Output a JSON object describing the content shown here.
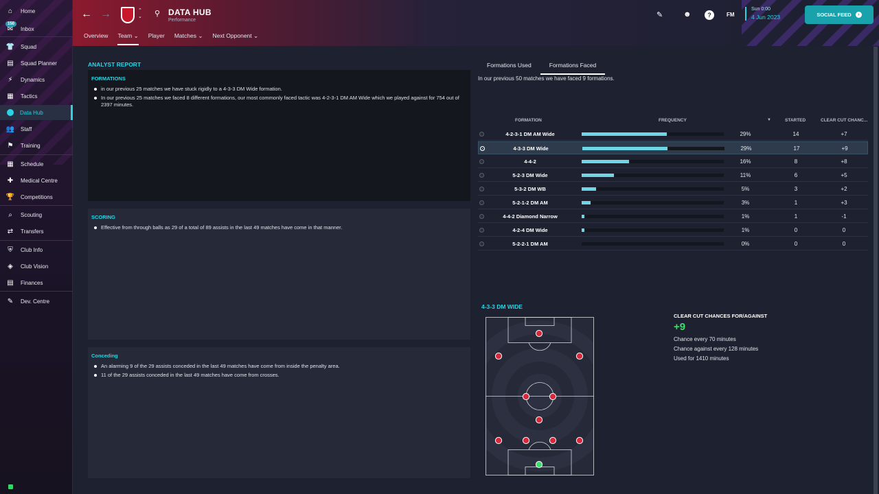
{
  "sidebar": {
    "inbox_badge": "150",
    "items": [
      {
        "label": "Home",
        "icon": "home-icon"
      },
      {
        "label": "Inbox",
        "icon": "inbox-icon"
      },
      {
        "label": "Squad",
        "icon": "shirt-icon"
      },
      {
        "label": "Squad Planner",
        "icon": "planner-icon"
      },
      {
        "label": "Dynamics",
        "icon": "dynamics-icon"
      },
      {
        "label": "Tactics",
        "icon": "tactics-icon"
      },
      {
        "label": "Data Hub",
        "icon": "data-hub-icon"
      },
      {
        "label": "Staff",
        "icon": "staff-icon"
      },
      {
        "label": "Training",
        "icon": "training-icon"
      },
      {
        "label": "Schedule",
        "icon": "calendar-icon"
      },
      {
        "label": "Medical Centre",
        "icon": "medical-icon"
      },
      {
        "label": "Competitions",
        "icon": "trophy-icon"
      },
      {
        "label": "Scouting",
        "icon": "scouting-icon"
      },
      {
        "label": "Transfers",
        "icon": "transfers-icon"
      },
      {
        "label": "Club Info",
        "icon": "shield-icon"
      },
      {
        "label": "Club Vision",
        "icon": "vision-icon"
      },
      {
        "label": "Finances",
        "icon": "finances-icon"
      },
      {
        "label": "Dev. Centre",
        "icon": "dev-centre-icon"
      }
    ]
  },
  "header": {
    "title": "DATA HUB",
    "subtitle": "Performance",
    "tabs": [
      "Overview",
      "Team",
      "Player",
      "Matches",
      "Next Opponent"
    ],
    "fm_label": "FM",
    "date_time": "Sun 0:00",
    "date_day": "4 Jun 2023",
    "social_feed": "SOCIAL FEED"
  },
  "analyst": {
    "title": "ANALYST REPORT",
    "formations": {
      "heading": "FORMATIONS",
      "bullets": [
        "in our previous 25 matches we have stuck rigidly to a 4-3-3 DM Wide formation.",
        "In our previous 25 matches we faced 8 different formations, our most commonly faced tactic was 4-2-3-1 DM AM Wide which we played against for 754 out of 2397 minutes."
      ]
    },
    "scoring": {
      "heading": "SCORING",
      "bullets": [
        "Effective from through balls as 29 of a total of 89 assists in the last 49 matches have come in that manner."
      ]
    },
    "conceding": {
      "heading": "Conceding",
      "bullets": [
        "An alarming 9 of the 29 assists conceded in the last 49 matches have come from inside the penalty area.",
        "11 of the 29 assists conceded in the last 49 matches have come from crosses."
      ]
    }
  },
  "formations_panel": {
    "tabs": [
      "Formations Used",
      "Formations Faced"
    ],
    "description": "In our previous 50 matches we have faced 9 formations.",
    "columns": {
      "formation": "FORMATION",
      "frequency": "FREQUENCY",
      "started": "STARTED",
      "ccc": "CLEAR CUT CHANC..."
    },
    "rows": [
      {
        "formation": "4-2-3-1 DM AM Wide",
        "freq": 29,
        "pct": "29%",
        "started": "14",
        "ccc": "+7"
      },
      {
        "formation": "4-3-3 DM Wide",
        "freq": 29,
        "pct": "29%",
        "started": "17",
        "ccc": "+9",
        "selected": true
      },
      {
        "formation": "4-4-2",
        "freq": 16,
        "pct": "16%",
        "started": "8",
        "ccc": "+8"
      },
      {
        "formation": "5-2-3 DM Wide",
        "freq": 11,
        "pct": "11%",
        "started": "6",
        "ccc": "+5"
      },
      {
        "formation": "5-3-2 DM WB",
        "freq": 5,
        "pct": "5%",
        "started": "3",
        "ccc": "+2"
      },
      {
        "formation": "5-2-1-2 DM AM",
        "freq": 3,
        "pct": "3%",
        "started": "1",
        "ccc": "+3"
      },
      {
        "formation": "4-4-2 Diamond Narrow",
        "freq": 1,
        "pct": "1%",
        "started": "1",
        "ccc": "-1"
      },
      {
        "formation": "4-2-4 DM Wide",
        "freq": 1,
        "pct": "1%",
        "started": "0",
        "ccc": "0"
      },
      {
        "formation": "5-2-2-1 DM AM",
        "freq": 0,
        "pct": "0%",
        "started": "0",
        "ccc": "0"
      }
    ]
  },
  "selected_formation": {
    "title": "4-3-3 DM WIDE",
    "stats_title": "CLEAR CUT CHANCES FOR/AGAINST",
    "stats_value": "+9",
    "lines": [
      "Chance every 70 minutes",
      "Chance against every 128 minutes",
      "Used for 1410 minutes"
    ]
  },
  "colors": {
    "accent": "#2ad4e4",
    "player": "#d8283c",
    "goalkeeper": "#3ae06a",
    "bar": "#6fd6e6"
  }
}
